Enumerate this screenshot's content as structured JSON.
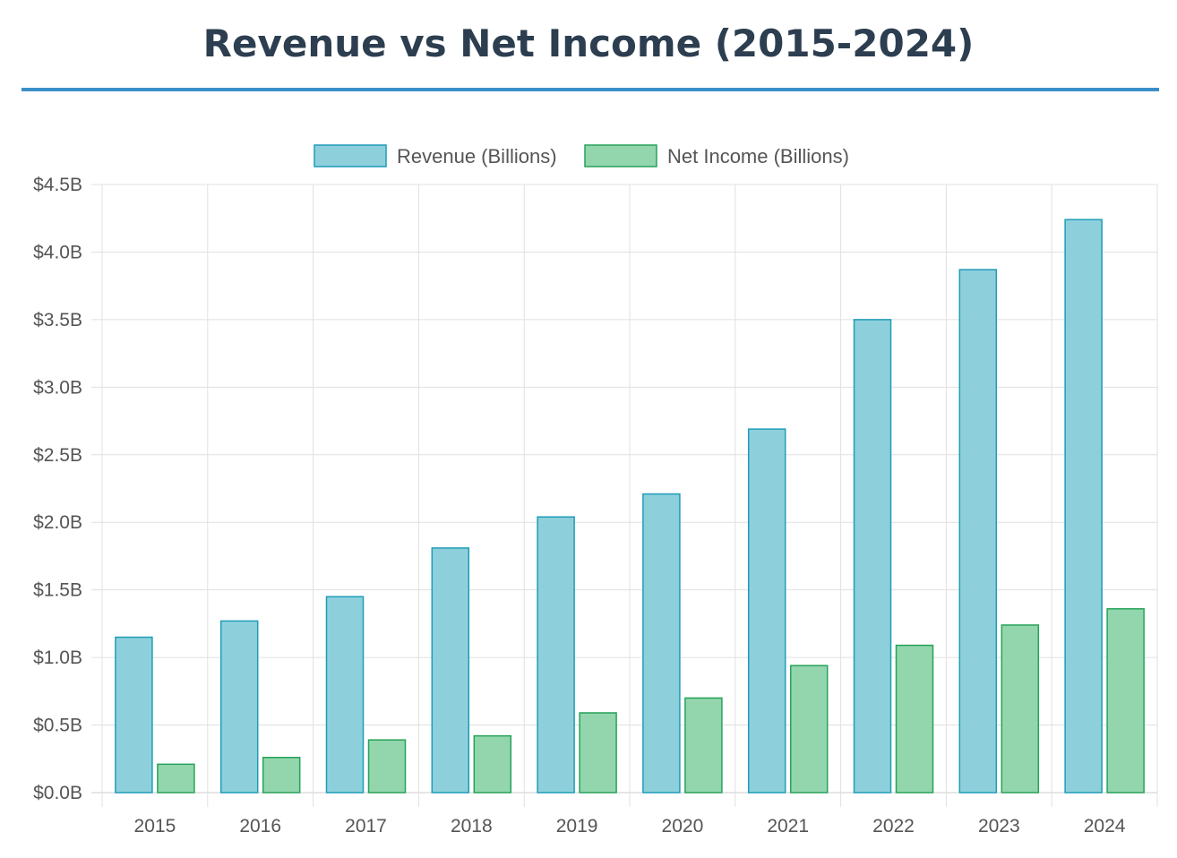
{
  "title": "Revenue vs Net Income (2015-2024)",
  "colors": {
    "title": "#2c3e50",
    "title_rule": "#3b8fc9",
    "revenue_fill": "#8dd0dc",
    "revenue_stroke": "#1f9cb8",
    "income_fill": "#93d6ad",
    "income_stroke": "#27a25a",
    "grid": "#e0e0e0",
    "axis": "#cccccc",
    "text": "#555555"
  },
  "chart_data": {
    "type": "bar",
    "title": "Revenue vs Net Income (2015-2024)",
    "categories": [
      "2015",
      "2016",
      "2017",
      "2018",
      "2019",
      "2020",
      "2021",
      "2022",
      "2023",
      "2024"
    ],
    "series": [
      {
        "name": "Revenue (Billions)",
        "values": [
          1.15,
          1.27,
          1.45,
          1.81,
          2.04,
          2.21,
          2.69,
          3.5,
          3.87,
          4.24
        ]
      },
      {
        "name": "Net Income (Billions)",
        "values": [
          0.21,
          0.26,
          0.39,
          0.42,
          0.59,
          0.7,
          0.94,
          1.09,
          1.24,
          1.36
        ]
      }
    ],
    "ylim": [
      0,
      4.5
    ],
    "yticks": [
      0,
      0.5,
      1.0,
      1.5,
      2.0,
      2.5,
      3.0,
      3.5,
      4.0,
      4.5
    ],
    "ytick_labels": [
      "$0.0B",
      "$0.5B",
      "$1.0B",
      "$1.5B",
      "$2.0B",
      "$2.5B",
      "$3.0B",
      "$3.5B",
      "$4.0B",
      "$4.5B"
    ],
    "xlabel": "",
    "ylabel": "",
    "grid": true,
    "legend": "top-center"
  }
}
